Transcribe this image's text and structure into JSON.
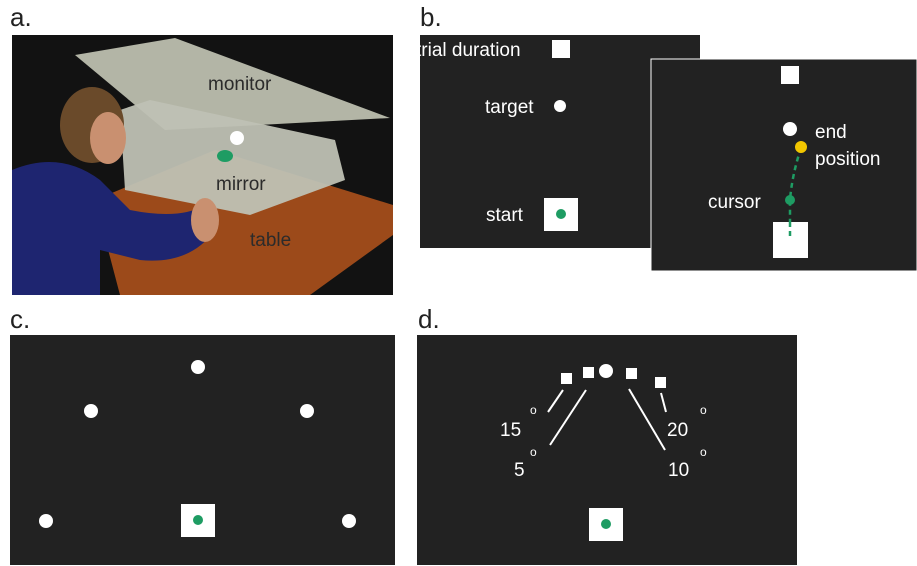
{
  "panels": {
    "a": {
      "label": "a.",
      "monitor": "monitor",
      "mirror": "mirror",
      "table": "table"
    },
    "b": {
      "label": "b.",
      "trial_duration": "trial duration",
      "target": "target",
      "start": "start",
      "end_position": [
        "end",
        "position"
      ],
      "cursor": "cursor"
    },
    "c": {
      "label": "c."
    },
    "d": {
      "label": "d.",
      "angles": [
        {
          "number": "15",
          "degree": "o"
        },
        {
          "number": "5",
          "degree": "o"
        },
        {
          "number": "20",
          "degree": "o"
        },
        {
          "number": "10",
          "degree": "o"
        }
      ]
    }
  }
}
